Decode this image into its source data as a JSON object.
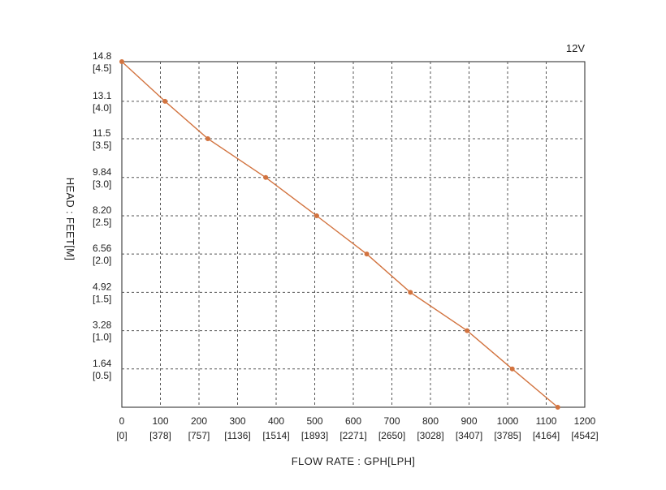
{
  "chart_data": {
    "type": "line",
    "title": "",
    "annotation": "12V",
    "xlabel": "FLOW RATE : GPH[LPH]",
    "ylabel": "HEAD : FEET[M]",
    "xlim": [
      0,
      1200
    ],
    "ylim": [
      0,
      14.8
    ],
    "grid": true,
    "x_ticks": [
      {
        "value": 0,
        "label": "0",
        "sub": "[0]"
      },
      {
        "value": 100,
        "label": "100",
        "sub": "[378]"
      },
      {
        "value": 200,
        "label": "200",
        "sub": "[757]"
      },
      {
        "value": 300,
        "label": "300",
        "sub": "[1136]"
      },
      {
        "value": 400,
        "label": "400",
        "sub": "[1514]"
      },
      {
        "value": 500,
        "label": "500",
        "sub": "[1893]"
      },
      {
        "value": 600,
        "label": "600",
        "sub": "[2271]"
      },
      {
        "value": 700,
        "label": "700",
        "sub": "[2650]"
      },
      {
        "value": 800,
        "label": "800",
        "sub": "[3028]"
      },
      {
        "value": 900,
        "label": "900",
        "sub": "[3407]"
      },
      {
        "value": 1000,
        "label": "1000",
        "sub": "[3785]"
      },
      {
        "value": 1100,
        "label": "1100",
        "sub": "[4164]"
      },
      {
        "value": 1200,
        "label": "1200",
        "sub": "[4542]"
      }
    ],
    "y_ticks": [
      {
        "value": 14.8,
        "label": "14.8",
        "sub": "[4.5]"
      },
      {
        "value": 13.1,
        "label": "13.1",
        "sub": "[4.0]"
      },
      {
        "value": 11.5,
        "label": "11.5",
        "sub": "[3.5]"
      },
      {
        "value": 9.84,
        "label": "9.84",
        "sub": "[3.0]"
      },
      {
        "value": 8.2,
        "label": "8.20",
        "sub": "[2.5]"
      },
      {
        "value": 6.56,
        "label": "6.56",
        "sub": "[2.0]"
      },
      {
        "value": 4.92,
        "label": "4.92",
        "sub": "[1.5]"
      },
      {
        "value": 3.28,
        "label": "3.28",
        "sub": "[1.0]"
      },
      {
        "value": 1.64,
        "label": "1.64",
        "sub": "[0.5]"
      }
    ],
    "series": [
      {
        "color": "#d2733f",
        "points": [
          {
            "x": 0,
            "y": 14.8
          },
          {
            "x": 112,
            "y": 13.1
          },
          {
            "x": 223,
            "y": 11.5
          },
          {
            "x": 373,
            "y": 9.84
          },
          {
            "x": 505,
            "y": 8.2
          },
          {
            "x": 635,
            "y": 6.56
          },
          {
            "x": 748,
            "y": 4.92
          },
          {
            "x": 895,
            "y": 3.28
          },
          {
            "x": 1012,
            "y": 1.64
          },
          {
            "x": 1130,
            "y": 0
          }
        ]
      }
    ]
  }
}
